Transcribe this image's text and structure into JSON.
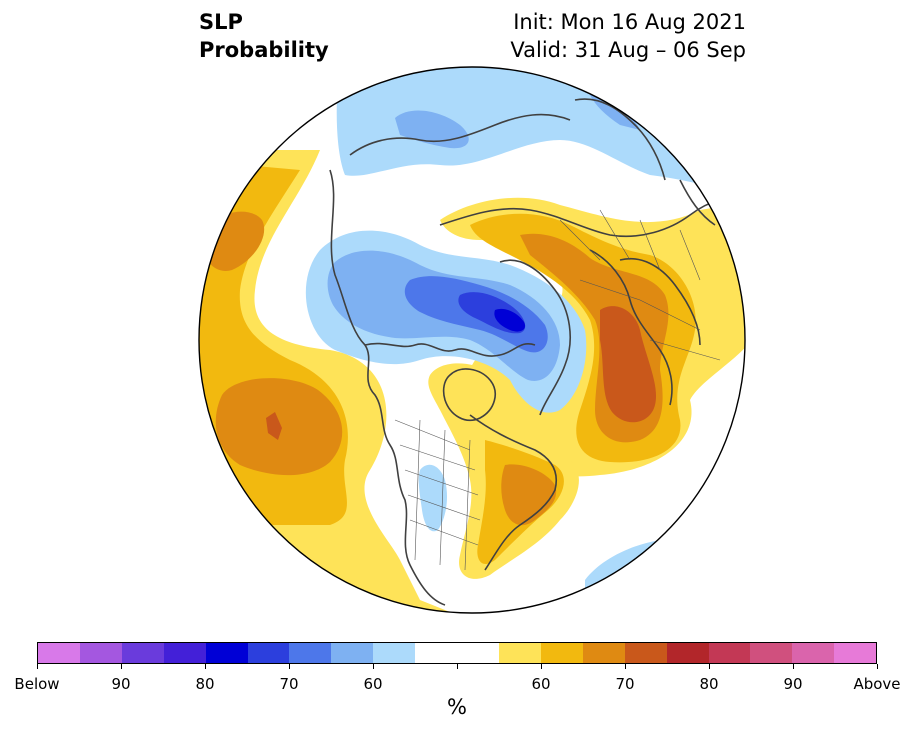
{
  "title": {
    "variable": "SLP",
    "product": "Probability",
    "init": "Init: Mon 16 Aug 2021",
    "valid": "Valid: 31 Aug – 06 Sep"
  },
  "colorbar": {
    "unit": "%",
    "colors": [
      "#d879e9",
      "#a457e0",
      "#6a3bdc",
      "#4320d8",
      "#0000d6",
      "#2c3fdd",
      "#4d77ea",
      "#7eb1f2",
      "#acdafb",
      "#ffffff",
      "#ffffff",
      "#fee358",
      "#f2b90f",
      "#df8a12",
      "#c9581b",
      "#b2262a",
      "#c33855",
      "#d0507e",
      "#da64ac",
      "#e77ad8"
    ],
    "tick_labels": [
      "Below",
      "90",
      "80",
      "70",
      "60",
      "",
      "60",
      "70",
      "80",
      "90",
      "Above"
    ]
  },
  "map_legend_colors": {
    "below_50": "#acdafb",
    "below_60": "#7eb1f2",
    "below_70": "#4d77ea",
    "below_80": "#2c3fdd",
    "above_50": "#fee358",
    "above_60": "#f2b90f",
    "above_70": "#df8a12",
    "above_80": "#c9581b"
  }
}
